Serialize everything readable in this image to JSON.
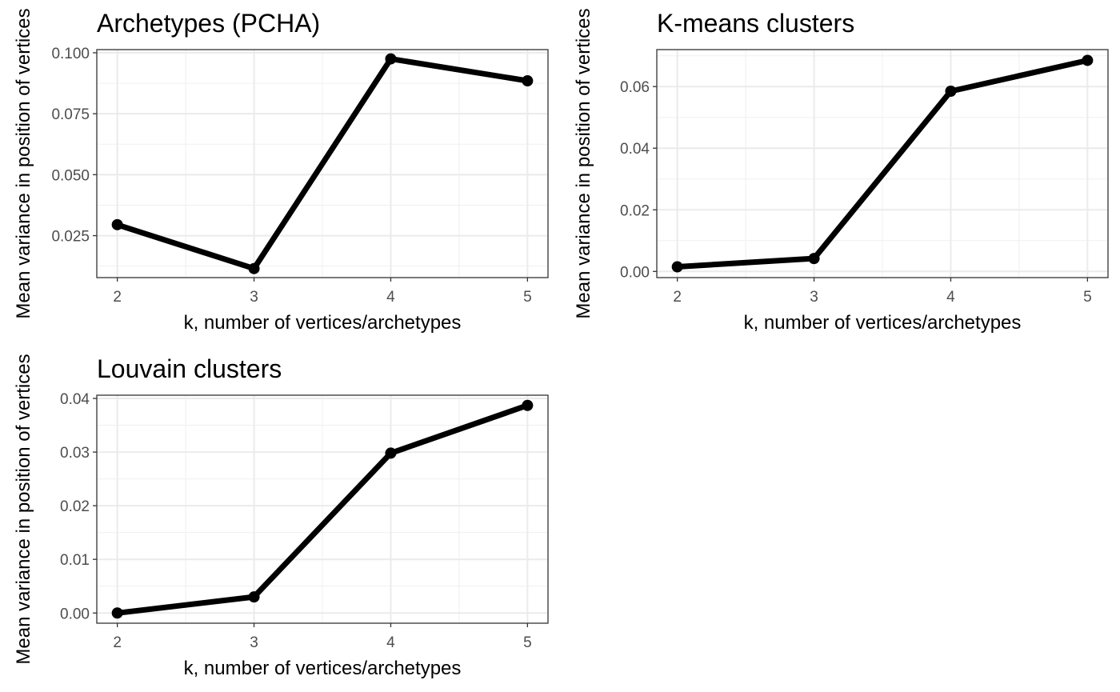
{
  "chart_data": [
    {
      "type": "line",
      "title": "Archetypes (PCHA)",
      "xlabel": "k, number of vertices/archetypes",
      "ylabel": "Mean variance in position of vertices",
      "x": [
        2,
        3,
        4,
        5
      ],
      "values": [
        0.0295,
        0.0115,
        0.0975,
        0.0885
      ],
      "xlim": [
        1.85,
        5.15
      ],
      "ylim": [
        0.0078,
        0.1013
      ],
      "xticks": [
        2,
        3,
        4,
        5
      ],
      "xtick_labels": [
        "2",
        "3",
        "4",
        "5"
      ],
      "yticks": [
        0.025,
        0.05,
        0.075,
        0.1
      ],
      "ytick_labels": [
        "0.025",
        "0.050",
        "0.075",
        "0.100"
      ],
      "grid": true,
      "theme": "bw",
      "line_color": "#000000"
    },
    {
      "type": "line",
      "title": "K-means clusters",
      "xlabel": "k, number of vertices/archetypes",
      "ylabel": "Mean variance in position of vertices",
      "x": [
        2,
        3,
        4,
        5
      ],
      "values": [
        0.0015,
        0.0042,
        0.0585,
        0.0685
      ],
      "xlim": [
        1.85,
        5.15
      ],
      "ylim": [
        -0.002,
        0.072
      ],
      "xticks": [
        2,
        3,
        4,
        5
      ],
      "xtick_labels": [
        "2",
        "3",
        "4",
        "5"
      ],
      "yticks": [
        0,
        0.02,
        0.04,
        0.06
      ],
      "ytick_labels": [
        "0.00",
        "0.02",
        "0.04",
        "0.06"
      ],
      "grid": true,
      "theme": "bw",
      "line_color": "#000000"
    },
    {
      "type": "line",
      "title": "Louvain clusters",
      "xlabel": "k, number of vertices/archetypes",
      "ylabel": "Mean variance in position of vertices",
      "x": [
        2,
        3,
        4,
        5
      ],
      "values": [
        0.0,
        0.003,
        0.0298,
        0.0387
      ],
      "xlim": [
        1.85,
        5.15
      ],
      "ylim": [
        -0.0019,
        0.0406
      ],
      "xticks": [
        2,
        3,
        4,
        5
      ],
      "xtick_labels": [
        "2",
        "3",
        "4",
        "5"
      ],
      "yticks": [
        0,
        0.01,
        0.02,
        0.03,
        0.04
      ],
      "ytick_labels": [
        "0.00",
        "0.01",
        "0.02",
        "0.03",
        "0.04"
      ],
      "grid": true,
      "theme": "bw",
      "line_color": "#000000"
    }
  ]
}
